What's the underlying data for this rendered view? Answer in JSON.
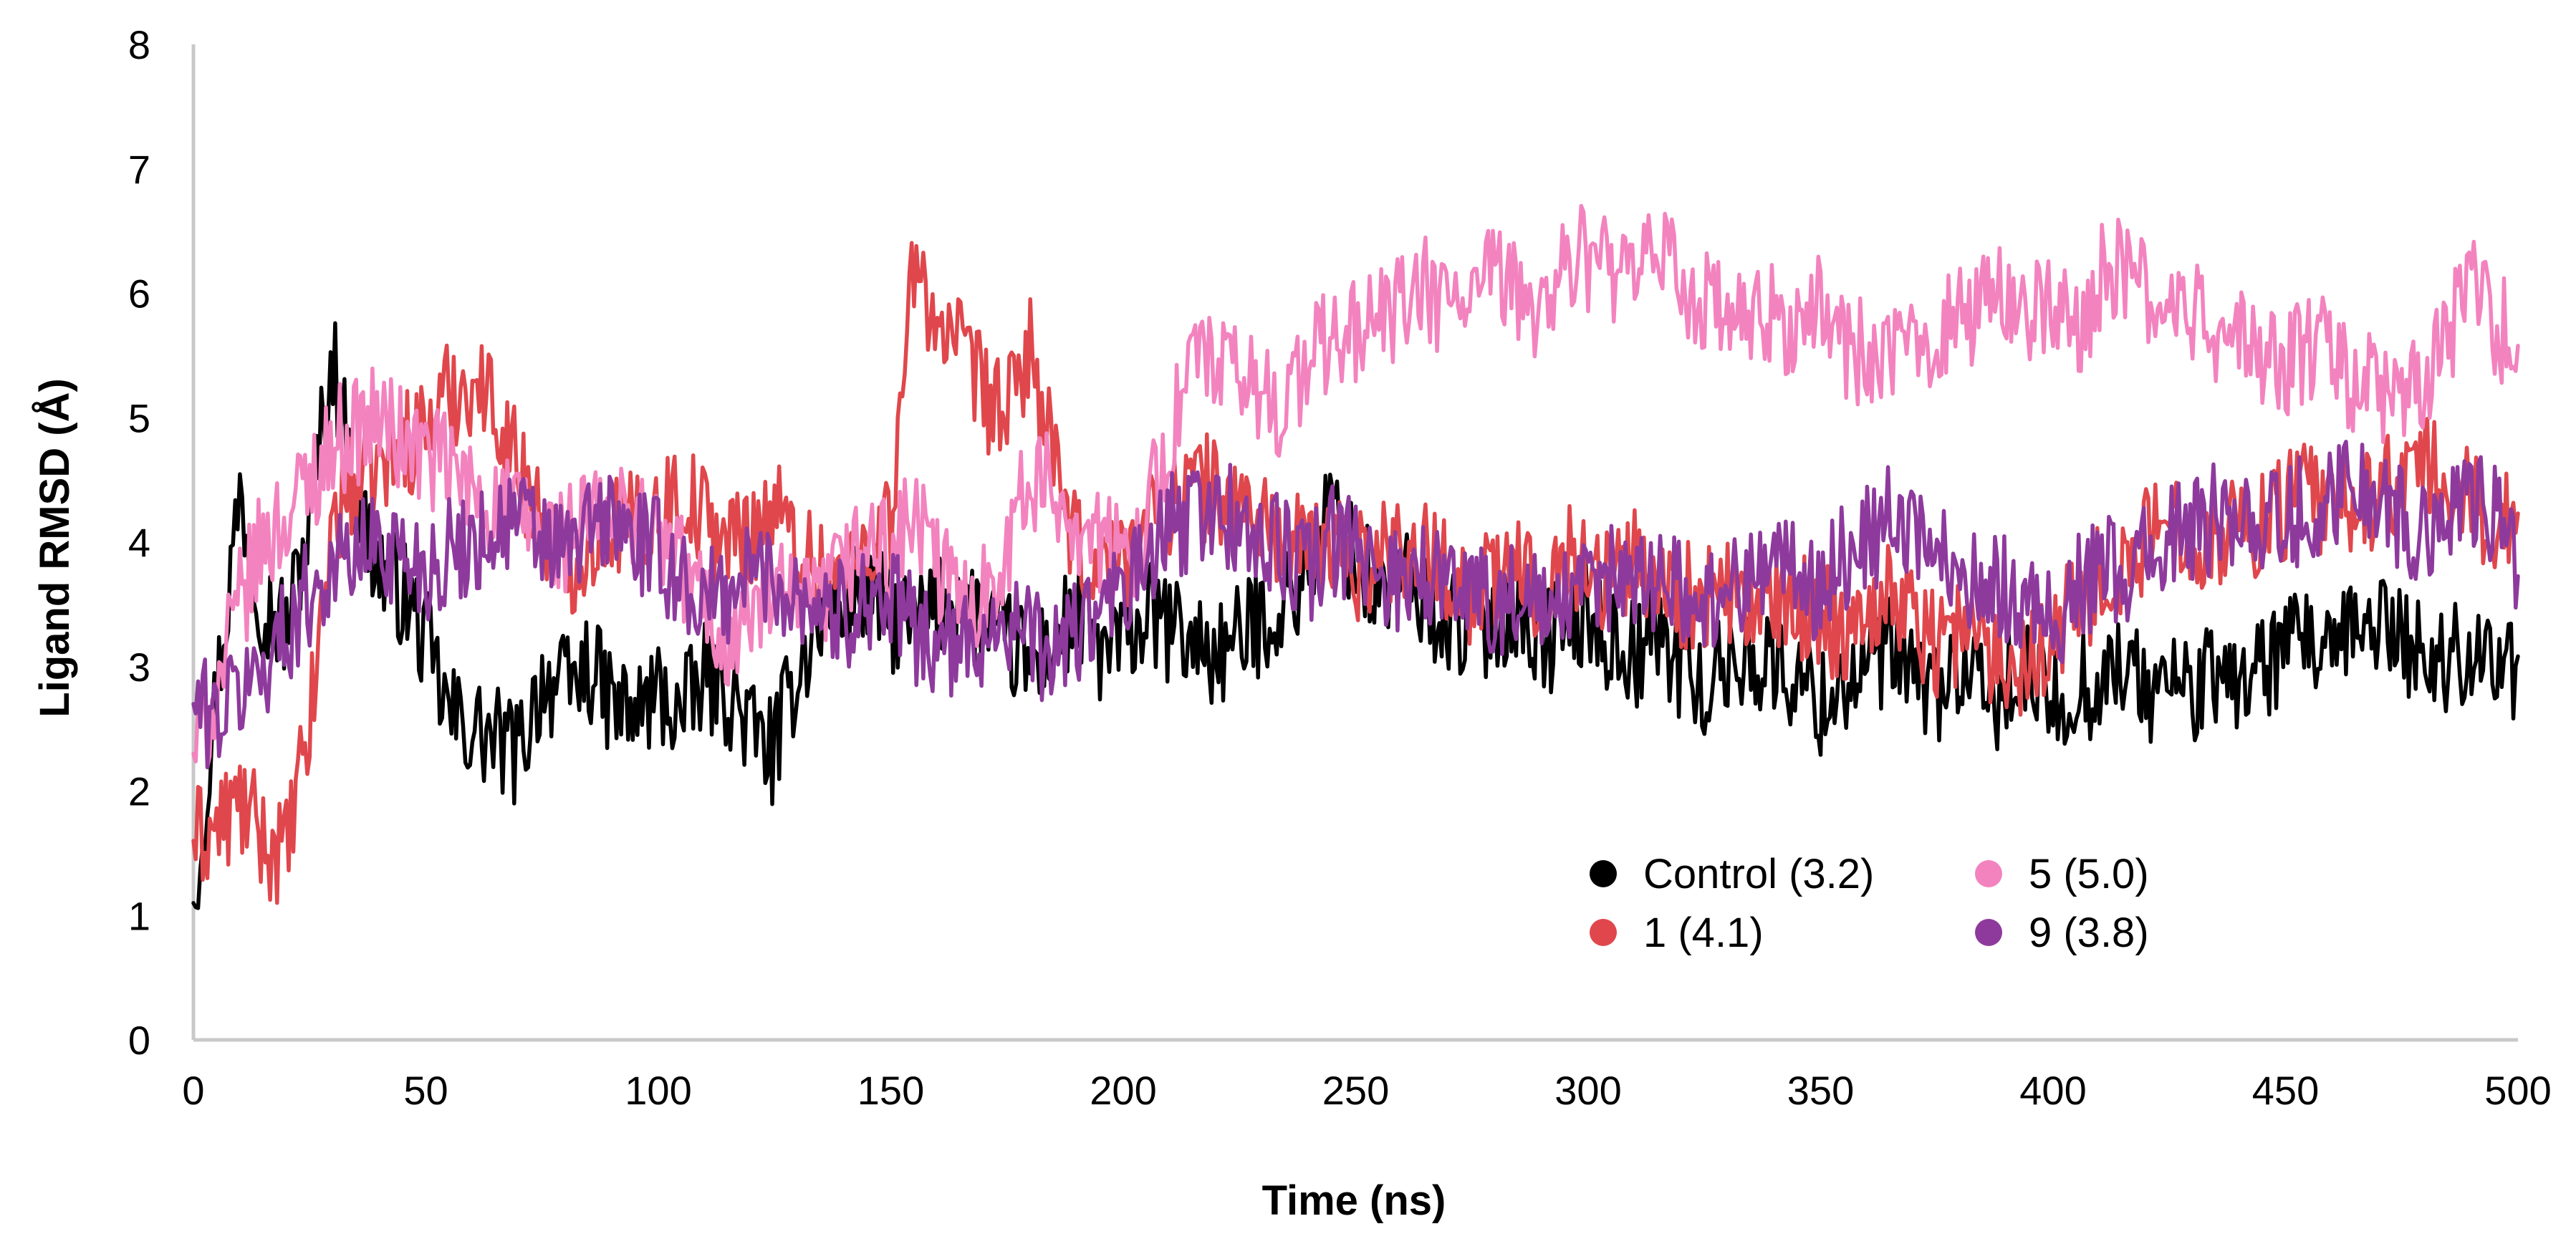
{
  "chart_data": {
    "type": "line",
    "title": "",
    "xlabel": "Time (ns)",
    "ylabel": "Ligand RMSD (Å)",
    "xlim": [
      0,
      500
    ],
    "ylim": [
      0,
      8
    ],
    "xticks": [
      0,
      50,
      100,
      150,
      200,
      250,
      300,
      350,
      400,
      450,
      500
    ],
    "yticks": [
      0,
      1,
      2,
      3,
      4,
      5,
      6,
      7,
      8
    ],
    "grid": false,
    "legend_position": "bottom-right",
    "x": [
      0,
      5,
      10,
      15,
      20,
      25,
      30,
      35,
      40,
      45,
      50,
      55,
      60,
      65,
      70,
      75,
      80,
      85,
      90,
      95,
      100,
      105,
      110,
      115,
      120,
      125,
      130,
      135,
      140,
      145,
      150,
      155,
      160,
      165,
      170,
      175,
      180,
      185,
      190,
      195,
      200,
      205,
      210,
      215,
      220,
      225,
      230,
      235,
      240,
      245,
      250,
      255,
      260,
      265,
      270,
      275,
      280,
      285,
      290,
      295,
      300,
      305,
      310,
      315,
      320,
      325,
      330,
      335,
      340,
      345,
      350,
      355,
      360,
      365,
      370,
      375,
      380,
      385,
      390,
      395,
      400,
      405,
      410,
      415,
      420,
      425,
      430,
      435,
      440,
      445,
      450,
      455,
      460,
      465,
      470,
      475,
      480,
      485,
      490,
      495,
      500
    ],
    "series": [
      {
        "name": "Control (3.2)",
        "color": "#000000",
        "values": [
          1.1,
          2.8,
          4.4,
          3.5,
          3.3,
          4.2,
          5.5,
          4.3,
          3.8,
          3.6,
          3.2,
          2.6,
          2.5,
          2.4,
          2.3,
          2.9,
          2.8,
          3.0,
          2.7,
          2.6,
          2.8,
          2.6,
          2.9,
          2.8,
          2.5,
          2.3,
          3.0,
          3.4,
          3.5,
          3.6,
          3.4,
          3.3,
          3.5,
          3.6,
          3.3,
          3.2,
          3.0,
          3.2,
          3.4,
          3.1,
          3.2,
          3.4,
          3.3,
          3.2,
          3.1,
          3.2,
          3.4,
          3.5,
          3.8,
          4.3,
          3.8,
          3.6,
          3.7,
          3.5,
          3.4,
          3.3,
          3.4,
          3.5,
          3.2,
          3.3,
          3.4,
          3.2,
          3.1,
          3.3,
          3.0,
          2.8,
          3.0,
          3.1,
          3.0,
          2.9,
          2.7,
          2.9,
          3.0,
          3.1,
          2.9,
          2.8,
          3.0,
          2.7,
          2.8,
          2.9,
          2.7,
          2.8,
          2.9,
          3.0,
          2.8,
          2.9,
          2.8,
          2.9,
          2.9,
          3.0,
          3.1,
          3.2,
          3.0,
          3.3,
          3.4,
          3.2,
          3.1,
          3.0,
          3.2,
          3.1,
          2.9
        ]
      },
      {
        "name": "1 (4.1)",
        "color": "#e0474c",
        "values": [
          1.6,
          1.7,
          1.9,
          1.6,
          1.5,
          2.5,
          4.2,
          4.5,
          4.6,
          4.8,
          4.9,
          5.2,
          5.3,
          5.1,
          4.6,
          4.2,
          3.8,
          4.0,
          4.2,
          4.1,
          4.3,
          4.4,
          4.2,
          4.0,
          4.1,
          4.3,
          3.9,
          3.8,
          3.7,
          4.0,
          4.2,
          6.2,
          5.8,
          5.5,
          5.2,
          5.0,
          5.6,
          4.6,
          3.9,
          3.8,
          3.9,
          4.1,
          4.3,
          4.5,
          4.4,
          4.3,
          4.2,
          4.0,
          3.9,
          4.0,
          3.8,
          3.9,
          4.0,
          3.9,
          3.8,
          3.6,
          3.7,
          3.8,
          3.6,
          3.9,
          3.8,
          3.7,
          3.9,
          3.7,
          3.6,
          3.5,
          3.6,
          3.5,
          3.4,
          3.5,
          3.4,
          3.3,
          3.5,
          3.6,
          3.4,
          3.2,
          3.3,
          3.2,
          3.0,
          3.1,
          3.3,
          3.5,
          3.7,
          3.8,
          4.0,
          4.2,
          4.1,
          4.0,
          4.2,
          4.1,
          4.3,
          4.4,
          4.2,
          4.3,
          4.4,
          4.5,
          4.6,
          4.4,
          4.3,
          4.2,
          4.1
        ]
      },
      {
        "name": "5 (5.0)",
        "color": "#f383bf",
        "values": [
          2.3,
          2.8,
          3.5,
          4.0,
          4.2,
          4.5,
          4.8,
          4.9,
          5.0,
          4.8,
          4.7,
          4.6,
          4.4,
          4.3,
          4.2,
          4.1,
          4.0,
          4.2,
          4.1,
          4.3,
          4.0,
          3.8,
          3.5,
          3.2,
          3.4,
          3.6,
          3.4,
          3.5,
          3.8,
          4.0,
          3.9,
          4.2,
          3.8,
          3.5,
          3.6,
          4.0,
          4.5,
          4.4,
          4.2,
          4.0,
          3.8,
          4.2,
          4.8,
          5.5,
          5.4,
          5.3,
          5.2,
          5.1,
          5.5,
          5.6,
          5.7,
          5.8,
          5.9,
          6.0,
          5.9,
          6.0,
          6.1,
          6.0,
          5.9,
          6.2,
          6.3,
          6.2,
          6.0,
          6.4,
          6.1,
          5.9,
          5.8,
          5.7,
          5.8,
          5.7,
          5.9,
          5.6,
          5.5,
          5.4,
          5.6,
          5.7,
          5.8,
          5.9,
          6.0,
          5.9,
          5.8,
          5.7,
          6.1,
          6.2,
          6.0,
          5.9,
          5.8,
          5.7,
          5.6,
          5.5,
          5.4,
          5.6,
          5.5,
          5.3,
          5.2,
          5.1,
          5.3,
          5.6,
          6.2,
          5.8,
          5.5
        ]
      },
      {
        "name": "9 (3.8)",
        "color": "#8e3a9d",
        "values": [
          2.7,
          2.6,
          2.8,
          3.0,
          3.3,
          3.6,
          3.8,
          3.9,
          4.0,
          3.9,
          3.8,
          3.9,
          4.0,
          4.1,
          4.2,
          4.0,
          3.9,
          4.1,
          4.2,
          4.0,
          3.9,
          3.7,
          3.5,
          3.6,
          3.8,
          3.7,
          3.6,
          3.5,
          3.4,
          3.6,
          3.5,
          3.3,
          3.2,
          3.1,
          3.3,
          3.4,
          3.2,
          3.1,
          3.3,
          3.4,
          3.6,
          3.8,
          4.1,
          4.2,
          4.3,
          4.1,
          4.0,
          3.9,
          3.8,
          4.0,
          3.9,
          3.8,
          3.7,
          3.8,
          3.6,
          3.7,
          3.5,
          3.6,
          3.4,
          3.5,
          3.6,
          3.7,
          3.8,
          3.7,
          3.6,
          3.5,
          3.6,
          3.8,
          3.9,
          3.7,
          3.6,
          3.9,
          4.0,
          4.2,
          4.1,
          3.9,
          3.8,
          3.7,
          3.6,
          3.5,
          3.4,
          3.6,
          3.8,
          3.7,
          3.9,
          4.0,
          4.1,
          4.2,
          4.3,
          4.1,
          4.2,
          4.3,
          4.4,
          4.5,
          4.3,
          4.2,
          4.1,
          4.3,
          4.4,
          4.2,
          3.7
        ]
      }
    ]
  }
}
